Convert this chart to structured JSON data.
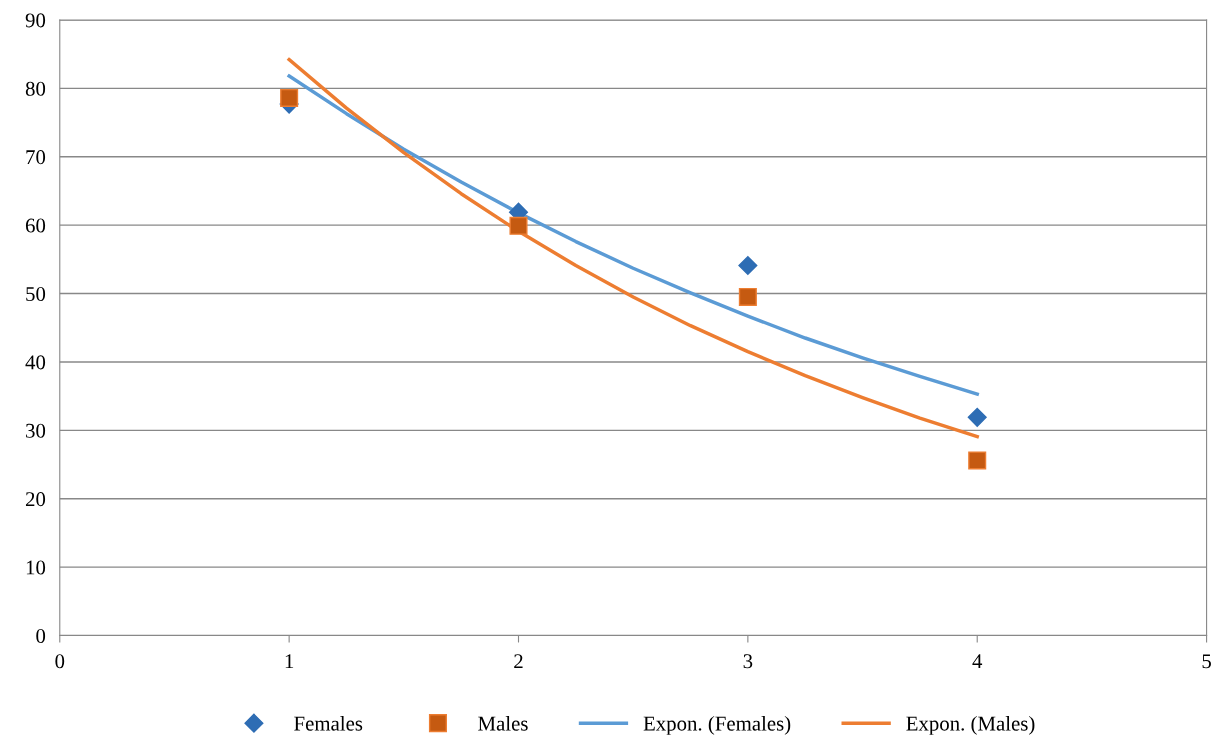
{
  "chart_data": {
    "type": "scatter",
    "xlim": [
      0,
      5
    ],
    "xticks": [
      0,
      1,
      2,
      3,
      4,
      5
    ],
    "ylim": [
      0,
      90
    ],
    "yticks": [
      0,
      10,
      20,
      30,
      40,
      50,
      60,
      70,
      80,
      90
    ],
    "grid": "y",
    "legend": "bottom",
    "series": [
      {
        "name": "Females",
        "marker": "diamond",
        "color": "#2e6db4",
        "x": [
          1,
          2,
          3,
          4
        ],
        "values": [
          77.7,
          61.9,
          54.1,
          31.9
        ]
      },
      {
        "name": "Males",
        "marker": "square",
        "color": "#c55a11",
        "x": [
          1,
          2,
          3,
          4
        ],
        "values": [
          78.6,
          59.9,
          49.5,
          25.6
        ]
      },
      {
        "name": "Expon. (Females)",
        "type": "line",
        "marker": "none",
        "color": "#5b9bd5",
        "x": [
          1,
          1.25,
          1.5,
          1.75,
          2,
          2.25,
          2.5,
          2.75,
          3,
          3.25,
          3.5,
          3.75,
          4
        ],
        "values": [
          81.8,
          76.3,
          71.1,
          66.3,
          61.8,
          57.6,
          53.7,
          50.1,
          46.7,
          43.5,
          40.6,
          37.9,
          35.3
        ]
      },
      {
        "name": "Expon. (Males)",
        "type": "line",
        "marker": "none",
        "color": "#ed7d31",
        "x": [
          1,
          1.25,
          1.5,
          1.75,
          2,
          2.25,
          2.5,
          2.75,
          3,
          3.25,
          3.5,
          3.75,
          4
        ],
        "values": [
          84.2,
          77.1,
          70.6,
          64.6,
          59.1,
          54.1,
          49.5,
          45.3,
          41.5,
          38.0,
          34.8,
          31.8,
          29.1
        ]
      }
    ]
  }
}
